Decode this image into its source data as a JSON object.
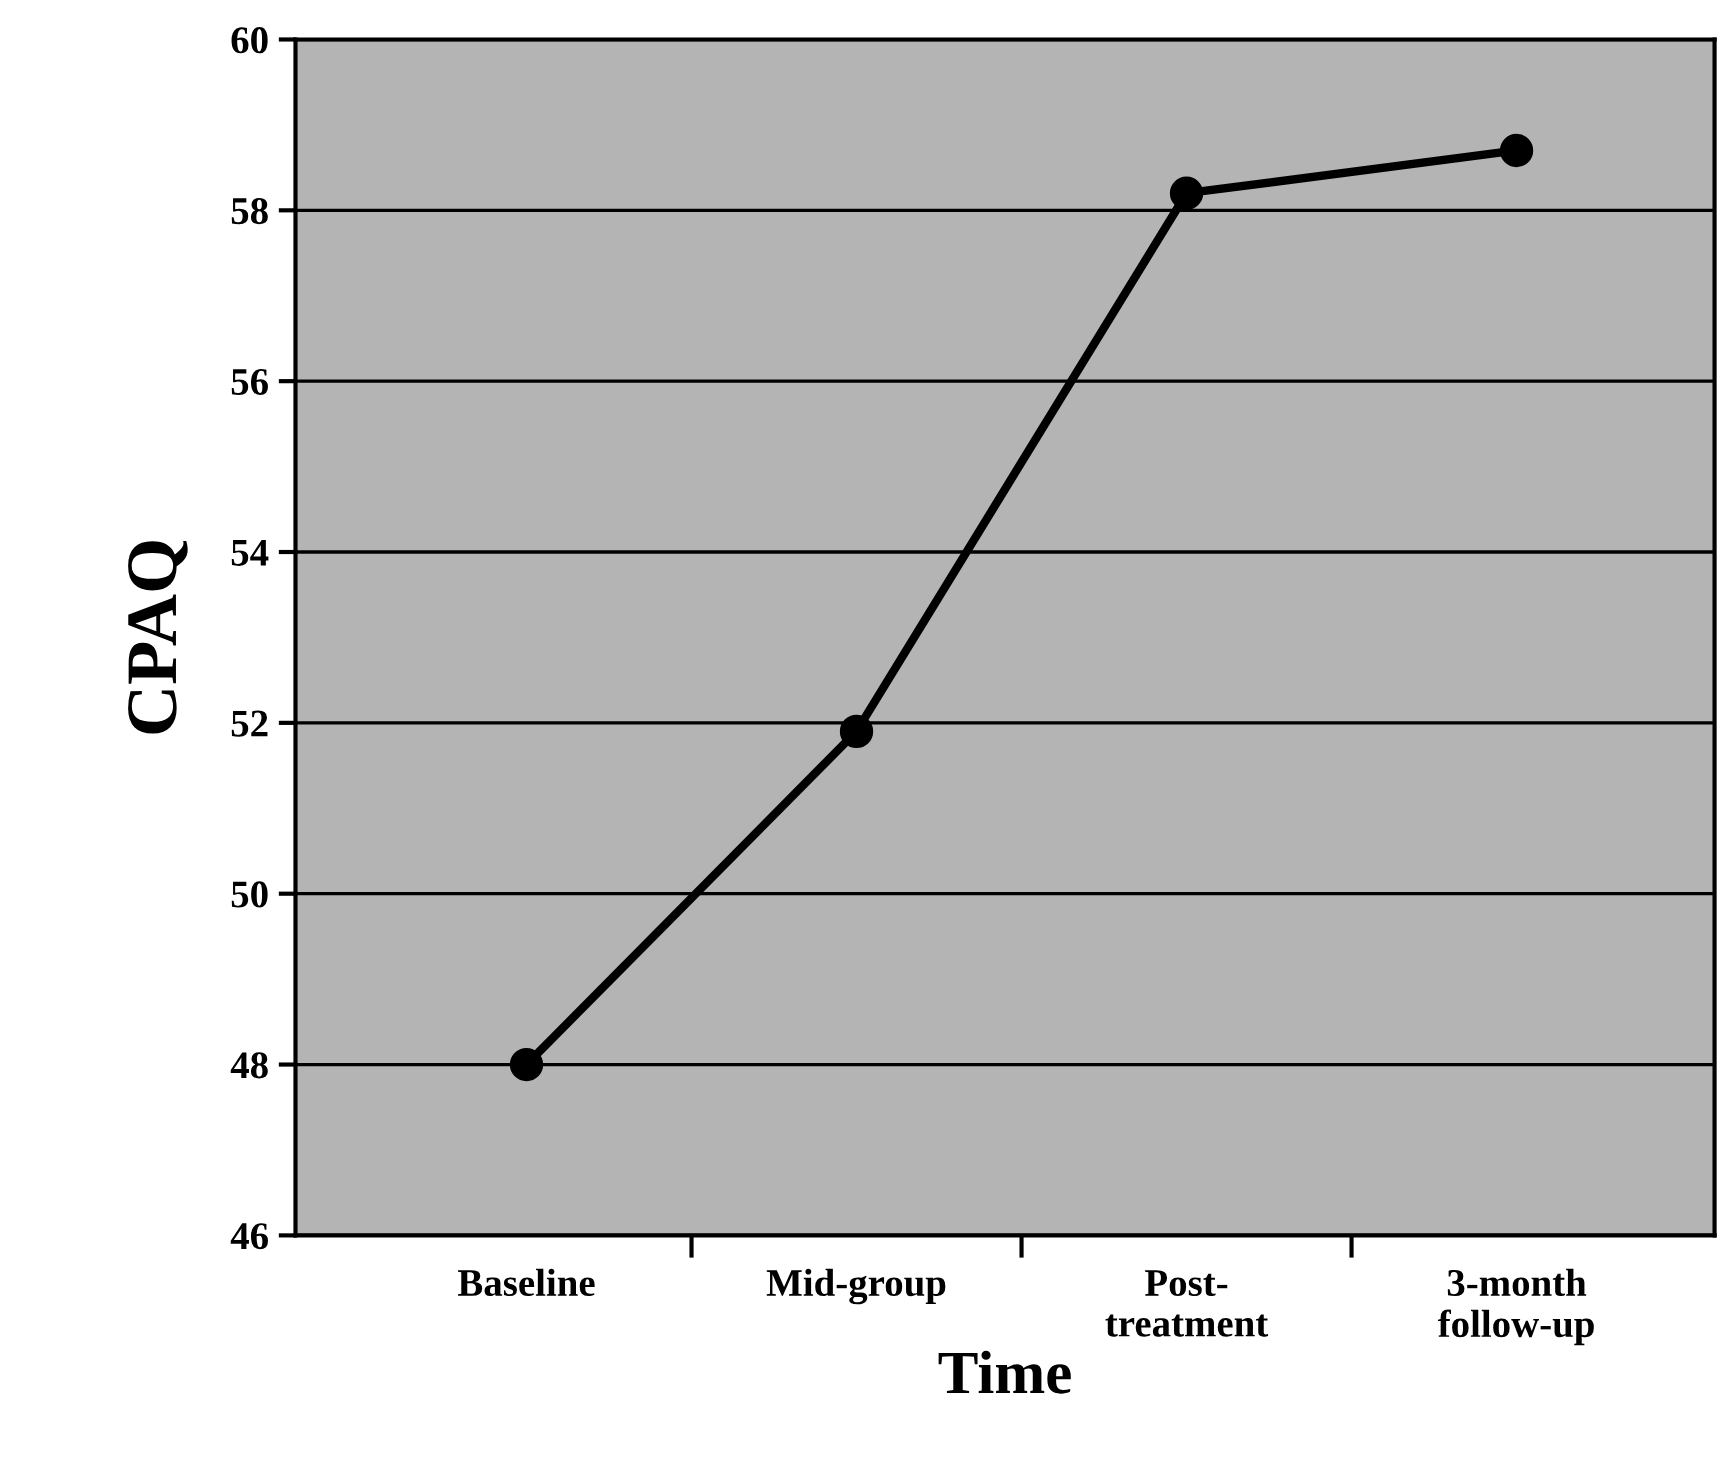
{
  "chart_data": {
    "type": "line",
    "xlabel": "Time",
    "ylabel": "CPAQ",
    "categories": [
      "Baseline",
      "Mid-group",
      "Post-\ntreatment",
      "3-month\nfollow-up"
    ],
    "series": [
      {
        "color": "#000000",
        "values": [
          48.0,
          51.9,
          58.2,
          58.7
        ]
      }
    ],
    "ylim": [
      46,
      60
    ],
    "yticks": [
      46,
      48,
      50,
      52,
      54,
      56,
      58,
      60
    ],
    "grid": "y",
    "marker": "circle",
    "line_style": "solid"
  }
}
